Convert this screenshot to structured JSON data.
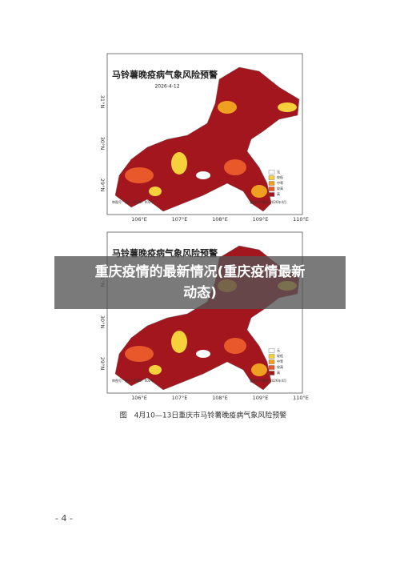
{
  "maps": [
    {
      "title": "马铃薯晚疫病气象风险预警",
      "date": "2026-4-12",
      "legend": [
        "无",
        "较低",
        "中等",
        "较高",
        "高"
      ],
      "note_left": "审图号：渝S（2026）002号",
      "note_right": "重庆市气象台 2026年4月"
    },
    {
      "title": "马铃薯晚疫病气象风险预警",
      "legend": [
        "无",
        "较低",
        "中等",
        "较高",
        "高"
      ],
      "note_left": "审图号：渝S（2026）002号",
      "note_right": "重庆市气象台 2026年4月"
    }
  ],
  "x_labels": [
    "106°E",
    "107°E",
    "108°E",
    "109°E",
    "110°E"
  ],
  "y_labels": [
    "31°N",
    "30°N",
    "29°N"
  ],
  "caption": "图　4月10—13日重庆市马铃薯晚疫病气象风险预警",
  "page_number": "- 4 -",
  "overlay_title": [
    "重庆疫情的最新情况(重庆疫情最新",
    "动态)"
  ]
}
